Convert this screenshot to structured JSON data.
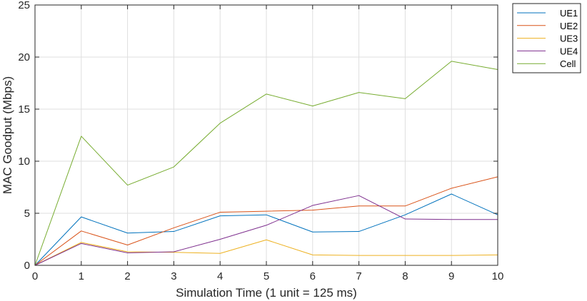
{
  "chart_data": {
    "type": "line",
    "title": "",
    "xlabel": "Simulation Time (1 unit = 125 ms)",
    "ylabel": "MAC Goodput (Mbps)",
    "x": [
      0,
      1,
      2,
      3,
      4,
      5,
      6,
      7,
      8,
      9,
      10
    ],
    "xlim": [
      0,
      10
    ],
    "ylim": [
      0,
      25
    ],
    "xticks": [
      "0",
      "1",
      "2",
      "3",
      "4",
      "5",
      "6",
      "7",
      "8",
      "9",
      "10"
    ],
    "yticks": [
      "0",
      "5",
      "10",
      "15",
      "20",
      "25"
    ],
    "xtick_values": [
      0,
      1,
      2,
      3,
      4,
      5,
      6,
      7,
      8,
      9,
      10
    ],
    "ytick_values": [
      0,
      5,
      10,
      15,
      20,
      25
    ],
    "grid": true,
    "legend_position": "outside-top-right",
    "series": [
      {
        "name": "UE1",
        "color": "#0072BD",
        "values": [
          0,
          4.65,
          3.1,
          3.25,
          4.75,
          4.85,
          3.2,
          3.25,
          4.85,
          6.85,
          4.85
        ]
      },
      {
        "name": "UE2",
        "color": "#D95319",
        "values": [
          0,
          3.3,
          1.95,
          3.6,
          5.1,
          5.2,
          5.3,
          5.7,
          5.7,
          7.4,
          8.5
        ]
      },
      {
        "name": "UE3",
        "color": "#EDB120",
        "values": [
          0,
          2.2,
          1.3,
          1.25,
          1.15,
          2.45,
          1.0,
          0.95,
          0.95,
          0.95,
          1.0
        ]
      },
      {
        "name": "UE4",
        "color": "#7E2F8E",
        "values": [
          0,
          2.1,
          1.2,
          1.3,
          2.5,
          3.85,
          5.75,
          6.7,
          4.45,
          4.4,
          4.4
        ]
      },
      {
        "name": "Cell",
        "color": "#77AC30",
        "values": [
          0,
          12.4,
          7.7,
          9.45,
          13.65,
          16.45,
          15.3,
          16.6,
          16.0,
          19.6,
          18.8
        ]
      }
    ]
  }
}
